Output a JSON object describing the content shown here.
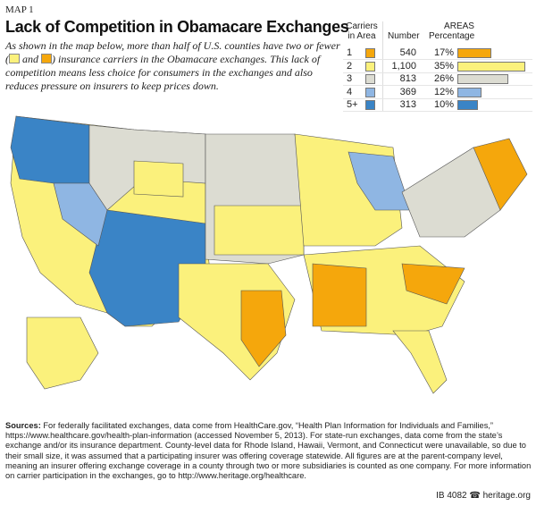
{
  "header": {
    "label": "MAP 1",
    "title": "Lack of Competition in Obamacare Exchanges",
    "intro_a": "As shown in the map below, more than half of U.S. counties have two or fewer (",
    "intro_and": "and",
    "intro_b": ") insurance carriers in the Obamacare exchanges. This lack of competition means less choice for consumers in the exchanges and also reduces pressure on insurers to keep prices down."
  },
  "legend": {
    "carriers_header": "Carriers in Area",
    "areas_header": "AREAS",
    "number_header": "Number",
    "percentage_header": "Percentage",
    "rows": [
      {
        "carriers": "1",
        "number": "540",
        "percentage": "17%",
        "pct_value": 17,
        "color": "#f5a70c"
      },
      {
        "carriers": "2",
        "number": "1,100",
        "percentage": "35%",
        "pct_value": 35,
        "color": "#fbf17c"
      },
      {
        "carriers": "3",
        "number": "813",
        "percentage": "26%",
        "pct_value": 26,
        "color": "#dcdcd2"
      },
      {
        "carriers": "4",
        "number": "369",
        "percentage": "12%",
        "pct_value": 12,
        "color": "#8fb6e3"
      },
      {
        "carriers": "5+",
        "number": "313",
        "percentage": "10%",
        "pct_value": 10,
        "color": "#3a84c6"
      }
    ]
  },
  "sources": {
    "label": "Sources:",
    "text": " For federally facilitated exchanges, data come from HealthCare.gov, “Health Plan Information for Individuals and Families,” https://www.healthcare.gov/health-plan-information (accessed November 5, 2013). For state-run exchanges, data come from the state’s exchange and/or its insurance department. County-level data for Rhode Island, Hawaii, Vermont, and Connecticut were unavailable, so due to their small size, it was assumed that a participating insurer was offering coverage statewide. All figures are at the parent-company level, meaning an insurer offering exchange coverage in a county through two or more subsidiaries is counted as one company. For more information on carrier participation in the exchanges, go to http://www.heritage.org/healthcare."
  },
  "footer": {
    "id": "IB 4082",
    "site": "heritage.org"
  }
}
